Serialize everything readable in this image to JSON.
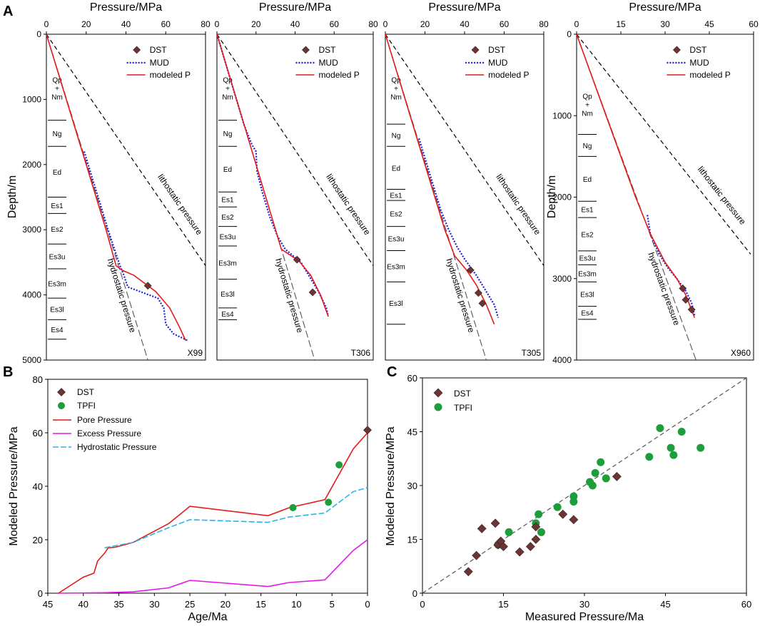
{
  "figure": {
    "panel_labels": [
      "A",
      "B",
      "C"
    ]
  },
  "chart_data": [
    {
      "type": "line",
      "panel": "A",
      "xlabel": "Pressure/MPa",
      "ylabel": "Depth/m",
      "y_ticks": [
        0,
        1000,
        2000,
        3000,
        4000,
        5000
      ],
      "legend": [
        "DST",
        "MUD",
        "modeled P"
      ],
      "annotations": {
        "hydrostatic": "hydrostatic pressure",
        "lithostatic": "lithostatic pressure"
      },
      "colors": {
        "dst": "#6b3535",
        "mud": "#1f1fd6",
        "modeled": "#e41a1c",
        "reference": "#000000"
      },
      "wells": [
        {
          "name": "X99",
          "xlim": [
            0,
            80
          ],
          "x_ticks": [
            0,
            20,
            40,
            60,
            80
          ],
          "ylim": [
            0,
            5000
          ],
          "hydrostatic": [
            [
              0,
              0
            ],
            [
              51,
              5000
            ]
          ],
          "lithostatic": [
            [
              0,
              0
            ],
            [
              80,
              3550
            ]
          ],
          "modeled": [
            [
              0,
              0
            ],
            [
              10,
              1000
            ],
            [
              20,
              2000
            ],
            [
              30,
              3000
            ],
            [
              35,
              3550
            ],
            [
              38,
              3620
            ],
            [
              44,
              3700
            ],
            [
              55,
              3950
            ],
            [
              62,
              4200
            ],
            [
              67,
              4500
            ],
            [
              70,
              4700
            ]
          ],
          "mud": [
            [
              19,
              1800
            ],
            [
              22,
              2100
            ],
            [
              25,
              2400
            ],
            [
              28,
              2700
            ],
            [
              31,
              3000
            ],
            [
              34,
              3280
            ],
            [
              37,
              3550
            ],
            [
              39,
              3700
            ],
            [
              40,
              3800
            ],
            [
              41,
              3880
            ],
            [
              48,
              3960
            ],
            [
              56,
              4050
            ],
            [
              59,
              4200
            ],
            [
              60,
              4450
            ],
            [
              64,
              4600
            ],
            [
              71,
              4700
            ]
          ],
          "dst": [
            [
              51,
              3860
            ]
          ],
          "strata": [
            {
              "name": "Qp\n+\nNm",
              "top": 0,
              "bottom": 1320
            },
            {
              "name": "Ng",
              "top": 1320,
              "bottom": 1720
            },
            {
              "name": "Ed",
              "top": 1720,
              "bottom": 2500
            },
            {
              "name": "Es1",
              "top": 2500,
              "bottom": 2750
            },
            {
              "name": "Es2",
              "top": 2750,
              "bottom": 3220
            },
            {
              "name": "Es3u",
              "top": 3220,
              "bottom": 3600
            },
            {
              "name": "Es3m",
              "top": 3600,
              "bottom": 4050
            },
            {
              "name": "Es3l",
              "top": 4050,
              "bottom": 4380
            },
            {
              "name": "Es4",
              "top": 4380,
              "bottom": 4680
            }
          ]
        },
        {
          "name": "T306",
          "xlim": [
            0,
            80
          ],
          "x_ticks": [
            0,
            20,
            40,
            60,
            80
          ],
          "ylim": [
            0,
            5000
          ],
          "hydrostatic": [
            [
              0,
              0
            ],
            [
              50,
              5000
            ]
          ],
          "lithostatic": [
            [
              0,
              0
            ],
            [
              80,
              3550
            ]
          ],
          "modeled": [
            [
              0,
              0
            ],
            [
              10,
              1000
            ],
            [
              20,
              2000
            ],
            [
              30,
              3000
            ],
            [
              33,
              3300
            ],
            [
              37,
              3380
            ],
            [
              42,
              3480
            ],
            [
              48,
              3700
            ],
            [
              53,
              4000
            ],
            [
              57,
              4330
            ]
          ],
          "mud": [
            [
              0,
              0
            ],
            [
              9,
              900
            ],
            [
              14,
              1400
            ],
            [
              18,
              1700
            ],
            [
              20,
              1800
            ],
            [
              20.5,
              2100
            ],
            [
              23,
              2400
            ],
            [
              27,
              2800
            ],
            [
              31,
              3100
            ],
            [
              35,
              3300
            ],
            [
              39,
              3400
            ],
            [
              43,
              3500
            ],
            [
              48,
              3750
            ],
            [
              52,
              3950
            ],
            [
              56,
              4200
            ],
            [
              57,
              4330
            ]
          ],
          "dst": [
            [
              41,
              3460
            ],
            [
              49,
              3960
            ]
          ],
          "strata": [
            {
              "name": "Qp\n+\nNm",
              "top": 0,
              "bottom": 1320
            },
            {
              "name": "Ng",
              "top": 1320,
              "bottom": 1720
            },
            {
              "name": "Ed",
              "top": 1720,
              "bottom": 2420
            },
            {
              "name": "Es1",
              "top": 2420,
              "bottom": 2650
            },
            {
              "name": "Es2",
              "top": 2650,
              "bottom": 2950
            },
            {
              "name": "Es3u",
              "top": 2950,
              "bottom": 3250
            },
            {
              "name": "Es3m",
              "top": 3250,
              "bottom": 3760
            },
            {
              "name": "Es3l",
              "top": 3760,
              "bottom": 4200
            },
            {
              "name": "Es4",
              "top": 4200,
              "bottom": 4380
            }
          ]
        },
        {
          "name": "T305",
          "xlim": [
            0,
            80
          ],
          "x_ticks": [
            0,
            20,
            40,
            60,
            80
          ],
          "ylim": [
            0,
            5000
          ],
          "hydrostatic": [
            [
              0,
              0
            ],
            [
              51,
              5000
            ]
          ],
          "lithostatic": [
            [
              0,
              0
            ],
            [
              80,
              3550
            ]
          ],
          "modeled": [
            [
              0,
              0
            ],
            [
              10,
              1000
            ],
            [
              20,
              2000
            ],
            [
              30,
              3000
            ],
            [
              35,
              3400
            ],
            [
              41,
              3620
            ],
            [
              46,
              3850
            ],
            [
              51,
              4150
            ],
            [
              55,
              4450
            ]
          ],
          "mud": [
            [
              17,
              1600
            ],
            [
              20,
              1900
            ],
            [
              24,
              2300
            ],
            [
              28,
              2700
            ],
            [
              32,
              3000
            ],
            [
              36,
              3250
            ],
            [
              40,
              3450
            ],
            [
              46,
              3700
            ],
            [
              51,
              3950
            ],
            [
              55,
              4150
            ],
            [
              57,
              4350
            ]
          ],
          "dst": [
            [
              43,
              3620
            ],
            [
              47,
              3970
            ],
            [
              49,
              4130
            ]
          ],
          "strata": [
            {
              "name": "Qp\n+\nNm",
              "top": 0,
              "bottom": 1380
            },
            {
              "name": "Ng",
              "top": 1380,
              "bottom": 1720
            },
            {
              "name": "Ed",
              "top": 1720,
              "bottom": 2380
            },
            {
              "name": "Es1",
              "top": 2380,
              "bottom": 2550
            },
            {
              "name": "Es2",
              "top": 2550,
              "bottom": 2950
            },
            {
              "name": "Es3u",
              "top": 2950,
              "bottom": 3320
            },
            {
              "name": "Es3m",
              "top": 3320,
              "bottom": 3800
            },
            {
              "name": "Es3l",
              "top": 3800,
              "bottom": 4450
            }
          ]
        },
        {
          "name": "X960",
          "xlim": [
            0,
            60
          ],
          "x_ticks": [
            0,
            15,
            30,
            45,
            60
          ],
          "ylim": [
            0,
            4000
          ],
          "hydrostatic": [
            [
              0,
              0
            ],
            [
              40.5,
              4000
            ]
          ],
          "lithostatic": [
            [
              0,
              0
            ],
            [
              59,
              2700
            ]
          ],
          "modeled": [
            [
              0,
              0
            ],
            [
              10,
              1000
            ],
            [
              20,
              2000
            ],
            [
              25,
              2450
            ],
            [
              30,
              2800
            ],
            [
              34,
              3000
            ],
            [
              37,
              3200
            ],
            [
              40,
              3480
            ]
          ],
          "mud": [
            [
              24,
              2220
            ],
            [
              25,
              2450
            ],
            [
              28,
              2700
            ],
            [
              31,
              2870
            ],
            [
              34,
              3000
            ],
            [
              37,
              3150
            ],
            [
              39,
              3300
            ],
            [
              40,
              3450
            ]
          ],
          "dst": [
            [
              36,
              3120
            ],
            [
              37,
              3260
            ],
            [
              39,
              3380
            ]
          ],
          "strata": [
            {
              "name": "Qp\n+\nNm",
              "top": 0,
              "bottom": 1230
            },
            {
              "name": "Ng",
              "top": 1230,
              "bottom": 1500
            },
            {
              "name": "Ed",
              "top": 1500,
              "bottom": 2050
            },
            {
              "name": "Es1",
              "top": 2050,
              "bottom": 2250
            },
            {
              "name": "Es2",
              "top": 2250,
              "bottom": 2660
            },
            {
              "name": "Es3u",
              "top": 2660,
              "bottom": 2830
            },
            {
              "name": "Es3m",
              "top": 2830,
              "bottom": 3040
            },
            {
              "name": "Es3l",
              "top": 3040,
              "bottom": 3340
            },
            {
              "name": "Es4",
              "top": 3340,
              "bottom": 3500
            }
          ]
        }
      ]
    },
    {
      "type": "line",
      "panel": "B",
      "xlabel": "Age/Ma",
      "ylabel": "Modeled Pressure/MPa",
      "xlim": [
        45,
        0
      ],
      "ylim": [
        0,
        80
      ],
      "x_ticks": [
        45,
        40,
        35,
        30,
        25,
        20,
        15,
        10,
        5,
        0
      ],
      "y_ticks": [
        0,
        20,
        40,
        60,
        80
      ],
      "legend": [
        "DST",
        "TPFI",
        "Pore Pressure",
        "Excess Pressure",
        "Hydrostatic Pressure"
      ],
      "colors": {
        "dst": "#6b3535",
        "tpfi": "#1e9e3a",
        "pore": "#e41a1c",
        "excess": "#e617e6",
        "hydro": "#29b5e8"
      },
      "series": [
        {
          "name": "Pore Pressure",
          "points": [
            [
              43.5,
              0
            ],
            [
              40,
              6
            ],
            [
              38.5,
              7.5
            ],
            [
              38,
              12
            ],
            [
              37,
              15
            ],
            [
              36.5,
              17
            ],
            [
              35.5,
              17.2
            ],
            [
              33,
              19
            ],
            [
              28,
              26
            ],
            [
              25,
              32.5
            ],
            [
              14,
              29
            ],
            [
              11,
              32
            ],
            [
              6,
              35
            ],
            [
              2,
              54
            ],
            [
              0,
              60
            ]
          ]
        },
        {
          "name": "Excess Pressure",
          "points": [
            [
              43.5,
              0
            ],
            [
              37,
              0.2
            ],
            [
              33,
              0.5
            ],
            [
              28,
              2
            ],
            [
              25,
              4.8
            ],
            [
              14,
              2.5
            ],
            [
              11,
              4
            ],
            [
              6,
              5
            ],
            [
              2,
              16
            ],
            [
              0,
              20
            ]
          ]
        },
        {
          "name": "Hydrostatic Pressure",
          "points": [
            [
              37,
              17
            ],
            [
              33,
              19
            ],
            [
              28,
              24.5
            ],
            [
              25,
              27.5
            ],
            [
              14,
              26.5
            ],
            [
              11,
              28.5
            ],
            [
              6,
              30
            ],
            [
              2,
              38
            ],
            [
              0,
              39.5
            ]
          ]
        }
      ],
      "dst": [
        [
          0,
          61
        ]
      ],
      "tpfi": [
        [
          10.5,
          32
        ],
        [
          5.5,
          34
        ],
        [
          4,
          48
        ]
      ]
    },
    {
      "type": "scatter",
      "panel": "C",
      "xlabel": "Measured Pressure/Ma",
      "ylabel": "Modeled Pressure/MPa",
      "xlim": [
        0,
        60
      ],
      "ylim": [
        0,
        60
      ],
      "x_ticks": [
        0,
        15,
        30,
        45,
        60
      ],
      "y_ticks": [
        0,
        15,
        30,
        45,
        60
      ],
      "legend": [
        "DST",
        "TPFI"
      ],
      "colors": {
        "dst": "#6b3535",
        "tpfi": "#1e9e3a",
        "diag": "#555555"
      },
      "dst": [
        [
          8.5,
          6
        ],
        [
          10,
          10.5
        ],
        [
          11,
          18
        ],
        [
          13.5,
          19.5
        ],
        [
          14,
          13.5
        ],
        [
          14.5,
          14.5
        ],
        [
          15,
          13
        ],
        [
          18,
          11.5
        ],
        [
          20,
          13
        ],
        [
          21,
          15
        ],
        [
          21,
          18.5
        ],
        [
          26,
          22
        ],
        [
          28,
          20.5
        ],
        [
          36,
          32.5
        ]
      ],
      "tpfi": [
        [
          14,
          13.5
        ],
        [
          16,
          17
        ],
        [
          21,
          19.5
        ],
        [
          21.5,
          22
        ],
        [
          22,
          17
        ],
        [
          25,
          24
        ],
        [
          28,
          25.5
        ],
        [
          28,
          27
        ],
        [
          31,
          31
        ],
        [
          31.5,
          30
        ],
        [
          32,
          33.5
        ],
        [
          33,
          36.5
        ],
        [
          34,
          32
        ],
        [
          42,
          38
        ],
        [
          44,
          46
        ],
        [
          46,
          40.5
        ],
        [
          46.5,
          38.5
        ],
        [
          48,
          45
        ],
        [
          51.5,
          40.5
        ]
      ]
    }
  ]
}
